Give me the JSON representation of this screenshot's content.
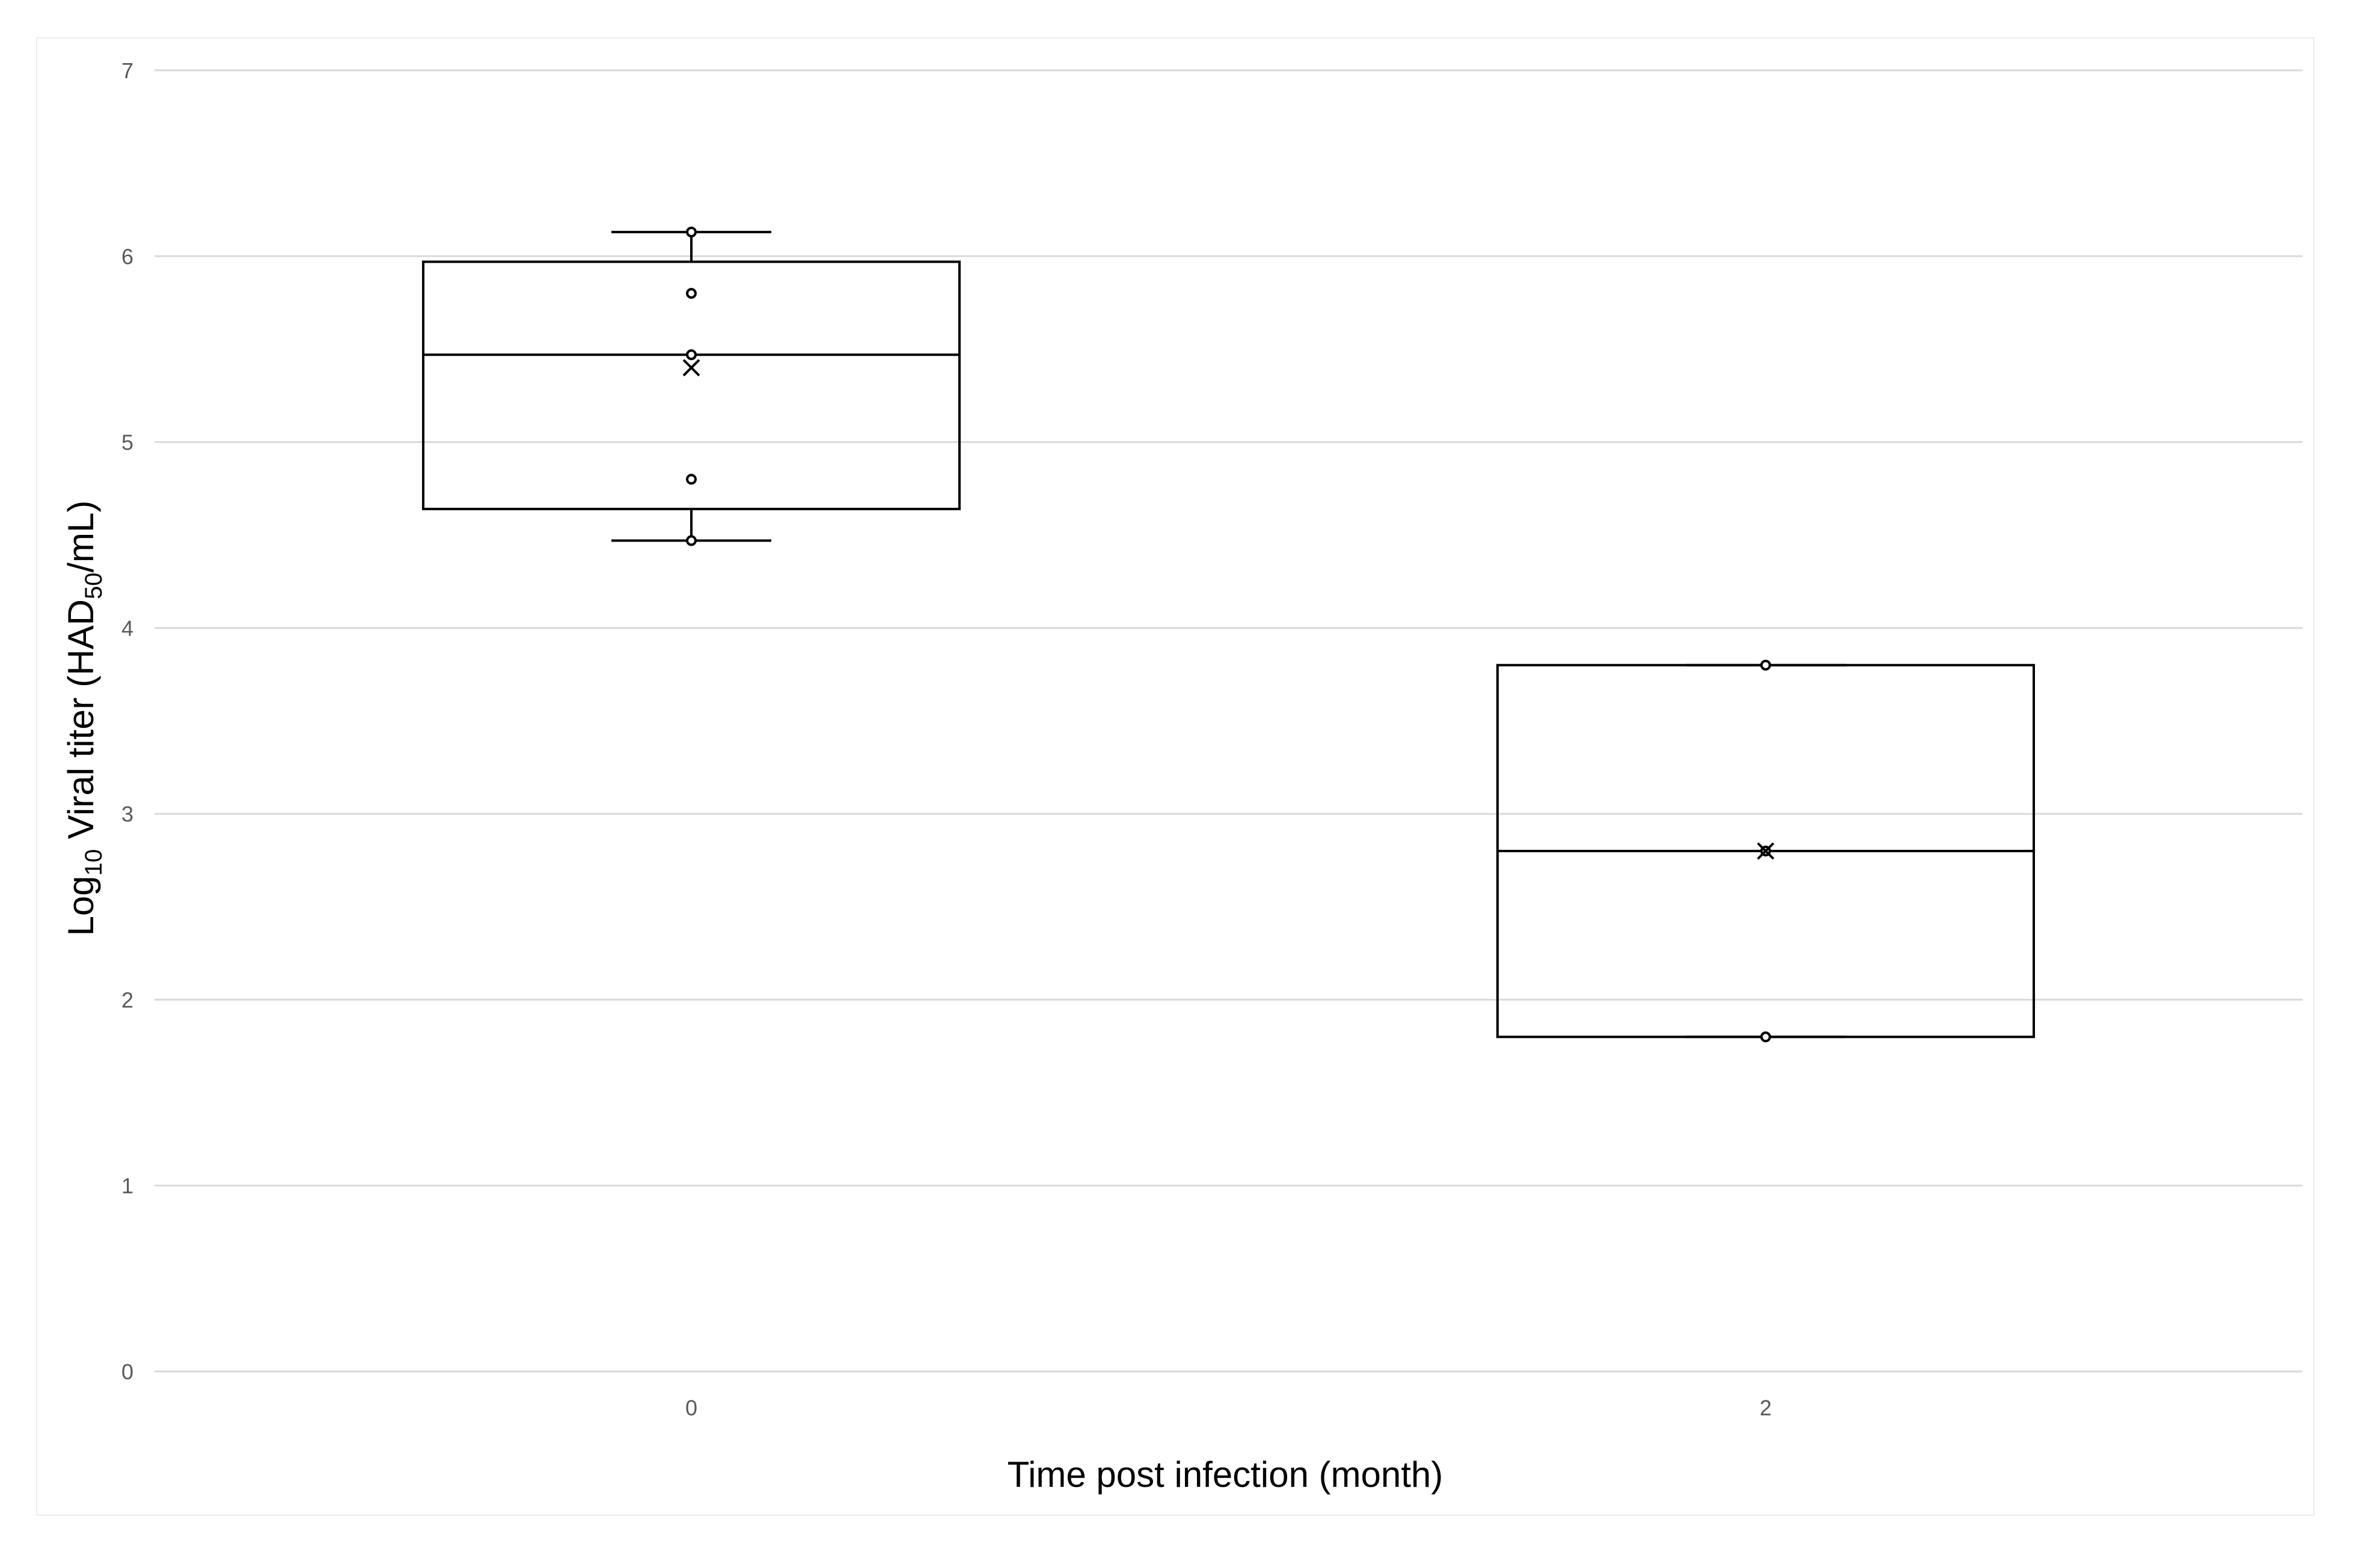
{
  "chart_data": {
    "type": "box",
    "title": "",
    "xlabel": "Time post infection (month)",
    "ylabel": {
      "base": "Log",
      "base_sub": "10",
      "main": " Viral titer (HAD",
      "unit_sub": "50",
      "end": "/mL)"
    },
    "ylim": [
      0,
      7
    ],
    "yticks": [
      0,
      1,
      2,
      3,
      4,
      5,
      6,
      7
    ],
    "grid": true,
    "categories": [
      "0",
      "2"
    ],
    "boxes": [
      {
        "category": "0",
        "whisker_low": 4.47,
        "q1": 4.64,
        "median": 5.47,
        "q3": 5.97,
        "whisker_high": 6.13,
        "mean": 5.4,
        "points": [
          6.13,
          5.8,
          5.47,
          4.8,
          4.47
        ]
      },
      {
        "category": "2",
        "whisker_low": 1.8,
        "q1": 1.8,
        "median": 2.8,
        "q3": 3.8,
        "whisker_high": 3.8,
        "mean": 2.8,
        "points": [
          3.8,
          2.8,
          1.8
        ]
      }
    ]
  },
  "colors": {
    "grid": "#d9d9d9",
    "box": "#000000",
    "tick_text": "#595959",
    "frame": "#ececec"
  }
}
